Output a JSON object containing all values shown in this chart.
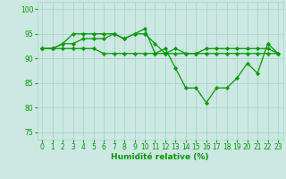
{
  "xlabel": "Humidité relative (%)",
  "background_color": "#cce8e2",
  "grid_color": "#aad4cc",
  "line_color": "#009900",
  "ylim": [
    73.5,
    101.5
  ],
  "xlim": [
    -0.5,
    23.5
  ],
  "yticks": [
    75,
    80,
    85,
    90,
    95,
    100
  ],
  "xticks": [
    0,
    1,
    2,
    3,
    4,
    5,
    6,
    7,
    8,
    9,
    10,
    11,
    12,
    13,
    14,
    15,
    16,
    17,
    18,
    19,
    20,
    21,
    22,
    23
  ],
  "series": [
    [
      92,
      92,
      93,
      95,
      95,
      95,
      95,
      95,
      94,
      95,
      96,
      91,
      92,
      88,
      84,
      84,
      81,
      84,
      84,
      86,
      89,
      87,
      93,
      91
    ],
    [
      92,
      92,
      93,
      93,
      94,
      94,
      94,
      95,
      94,
      95,
      95,
      93,
      91,
      92,
      91,
      91,
      92,
      92,
      92,
      92,
      92,
      92,
      92,
      91
    ],
    [
      92,
      92,
      92,
      92,
      92,
      92,
      91,
      91,
      91,
      91,
      91,
      91,
      91,
      91,
      91,
      91,
      91,
      91,
      91,
      91,
      91,
      91,
      91,
      91
    ]
  ],
  "figsize": [
    3.2,
    2.0
  ],
  "dpi": 100,
  "tick_fontsize": 5.5,
  "xlabel_fontsize": 6.5,
  "linewidth": 0.9,
  "markersize": 2.3
}
